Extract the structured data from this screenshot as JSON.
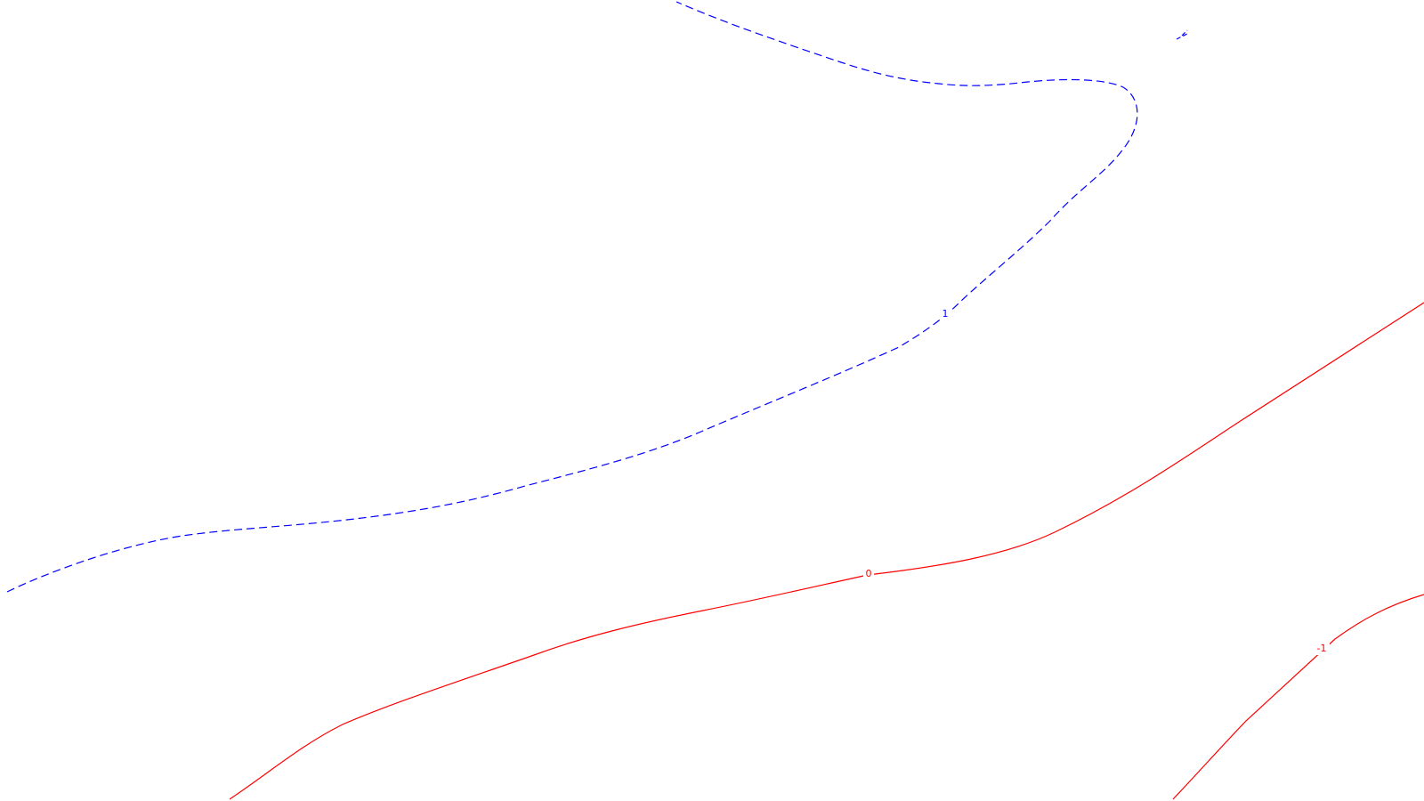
{
  "map": {
    "background": "#ffffff",
    "contours": [
      {
        "id": "contour-1",
        "level": "1",
        "color": "#0000ff",
        "style": "dashed"
      },
      {
        "id": "contour-1-fragment",
        "level": "1",
        "color": "#0000ff",
        "style": "dashed"
      },
      {
        "id": "contour-0",
        "level": "0",
        "color": "#ff0000",
        "style": "solid"
      },
      {
        "id": "contour-neg1",
        "level": "-1",
        "color": "#ff0000",
        "style": "solid"
      }
    ],
    "labels": {
      "pos1": "1",
      "zero": "0",
      "neg1": "-1"
    }
  }
}
